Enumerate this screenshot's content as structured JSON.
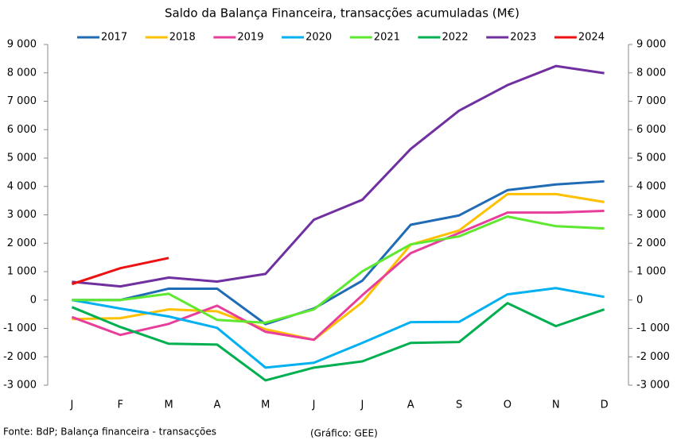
{
  "chart_data": {
    "type": "line",
    "title": "Saldo da Balança Financeira, transacções acumuladas (M€)",
    "source": "Fonte: BdP; Balança financeira - transacções",
    "credit": "(Gráfico: GEE)",
    "categories": [
      "J",
      "F",
      "M",
      "A",
      "M",
      "J",
      "J",
      "A",
      "S",
      "O",
      "N",
      "D"
    ],
    "series": [
      {
        "name": "2017",
        "color": "#1f6bb5",
        "values": [
          0,
          0,
          400,
          400,
          -850,
          -300,
          680,
          2650,
          2980,
          3870,
          4070,
          4180
        ]
      },
      {
        "name": "2018",
        "color": "#ffc000",
        "values": [
          -670,
          -640,
          -330,
          -400,
          -1030,
          -1400,
          -80,
          1950,
          2450,
          3730,
          3730,
          3450
        ]
      },
      {
        "name": "2019",
        "color": "#e83e9b",
        "values": [
          -600,
          -1230,
          -840,
          -200,
          -1120,
          -1400,
          170,
          1650,
          2360,
          3080,
          3080,
          3140
        ]
      },
      {
        "name": "2020",
        "color": "#00b0f0",
        "values": [
          0,
          -300,
          -580,
          -980,
          -2380,
          -2210,
          -1510,
          -780,
          -770,
          200,
          420,
          110
        ]
      },
      {
        "name": "2021",
        "color": "#5ee82f",
        "values": [
          0,
          0,
          220,
          -700,
          -800,
          -330,
          1010,
          1960,
          2240,
          2940,
          2600,
          2520
        ]
      },
      {
        "name": "2022",
        "color": "#00b050",
        "values": [
          -250,
          -950,
          -1540,
          -1570,
          -2830,
          -2380,
          -2160,
          -1510,
          -1480,
          -110,
          -920,
          -330
        ]
      },
      {
        "name": "2023",
        "color": "#7030a0",
        "values": [
          640,
          480,
          790,
          650,
          920,
          2830,
          3530,
          5320,
          6670,
          7570,
          8240,
          7990
        ]
      },
      {
        "name": "2024",
        "color": "#ee1111",
        "values": [
          560,
          1120,
          1480,
          null,
          null,
          null,
          null,
          null,
          null,
          null,
          null,
          null
        ]
      }
    ],
    "ylim": [
      -3000,
      9000
    ],
    "yticks": [
      {
        "value": -3000,
        "label": "-3 000"
      },
      {
        "value": -2000,
        "label": "-2 000"
      },
      {
        "value": -1000,
        "label": "-1 000"
      },
      0,
      {
        "value": 1000,
        "label": "1 000"
      },
      {
        "value": 2000,
        "label": "2 000"
      },
      {
        "value": 3000,
        "label": "3 000"
      },
      {
        "value": 4000,
        "label": "4 000"
      },
      {
        "value": 5000,
        "label": "5 000"
      },
      {
        "value": 6000,
        "label": "6 000"
      },
      {
        "value": 7000,
        "label": "7 000"
      },
      {
        "value": 8000,
        "label": "8 000"
      },
      {
        "value": 9000,
        "label": "9 000"
      }
    ],
    "y2lim": [
      -3000,
      9000
    ],
    "y2ticks": [
      {
        "value": -3000,
        "label": "-3 000"
      },
      {
        "value": -2000,
        "label": "-2 000"
      },
      {
        "value": -1000,
        "label": "-1 000"
      },
      0,
      {
        "value": 1000,
        "label": "1 000"
      },
      {
        "value": 2000,
        "label": "2 000"
      },
      {
        "value": 3000,
        "label": "3 000"
      },
      {
        "value": 4000,
        "label": "4 000"
      },
      {
        "value": 5000,
        "label": "5 000"
      },
      {
        "value": 6000,
        "label": "6 000"
      },
      {
        "value": 7000,
        "label": "7 000"
      },
      {
        "value": 8000,
        "label": "8 000"
      },
      {
        "value": 9000,
        "label": "9 000"
      }
    ],
    "grid": false,
    "legend": "top"
  }
}
